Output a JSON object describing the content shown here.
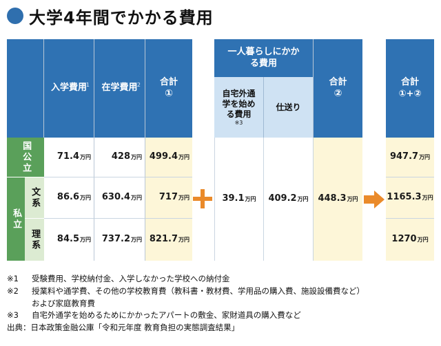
{
  "title": "大学4年間でかかる費用",
  "table1": {
    "headers": {
      "admission": "入学費用",
      "admission_note": "※1",
      "tuition": "在学費用",
      "tuition_note": "※2",
      "total_label": "合計",
      "total_num": "①"
    },
    "rows": {
      "national": {
        "label": "国公立",
        "admission": "71.4",
        "tuition": "428",
        "total": "499.4"
      },
      "private_label": "私立",
      "humanities": {
        "label": "文系",
        "admission": "86.6",
        "tuition": "630.4",
        "total": "717"
      },
      "science": {
        "label": "理系",
        "admission": "84.5",
        "tuition": "737.2",
        "total": "821.7"
      }
    }
  },
  "table2": {
    "group_header": "一人暮らしにかかる費用",
    "home_commute": "自宅外通学を始める費用",
    "home_commute_note": "※3",
    "allowance": "仕送り",
    "total_label": "合計",
    "total_num": "②",
    "home_commute_value": "39.1",
    "allowance_value": "409.2",
    "total_value": "448.3"
  },
  "table3": {
    "total_label": "合計",
    "total_num": "①+②",
    "values": [
      "947.7",
      "1165.3",
      "1270"
    ]
  },
  "unit": "万円",
  "notes": [
    {
      "key": "※1",
      "text": "受験費用、学校納付金、入学しなかった学校への納付金"
    },
    {
      "key": "※2",
      "text": "授業料や通学費、その他の学校教育費（教科書・教材費、学用品の購入費、施設設備費など）"
    },
    {
      "key": "",
      "text": "および家庭教育費"
    },
    {
      "key": "※3",
      "text": "自宅外通学を始めるためにかかったアパートの敷金、家財道具の購入費など"
    }
  ],
  "source": "出典：日本政策金融公庫「令和元年度 教育負担の実態調査結果」",
  "colors": {
    "blue": "#2f72b3",
    "green": "#5aa05a",
    "orange": "#ea8a2a",
    "cream": "#fdf6d8"
  }
}
